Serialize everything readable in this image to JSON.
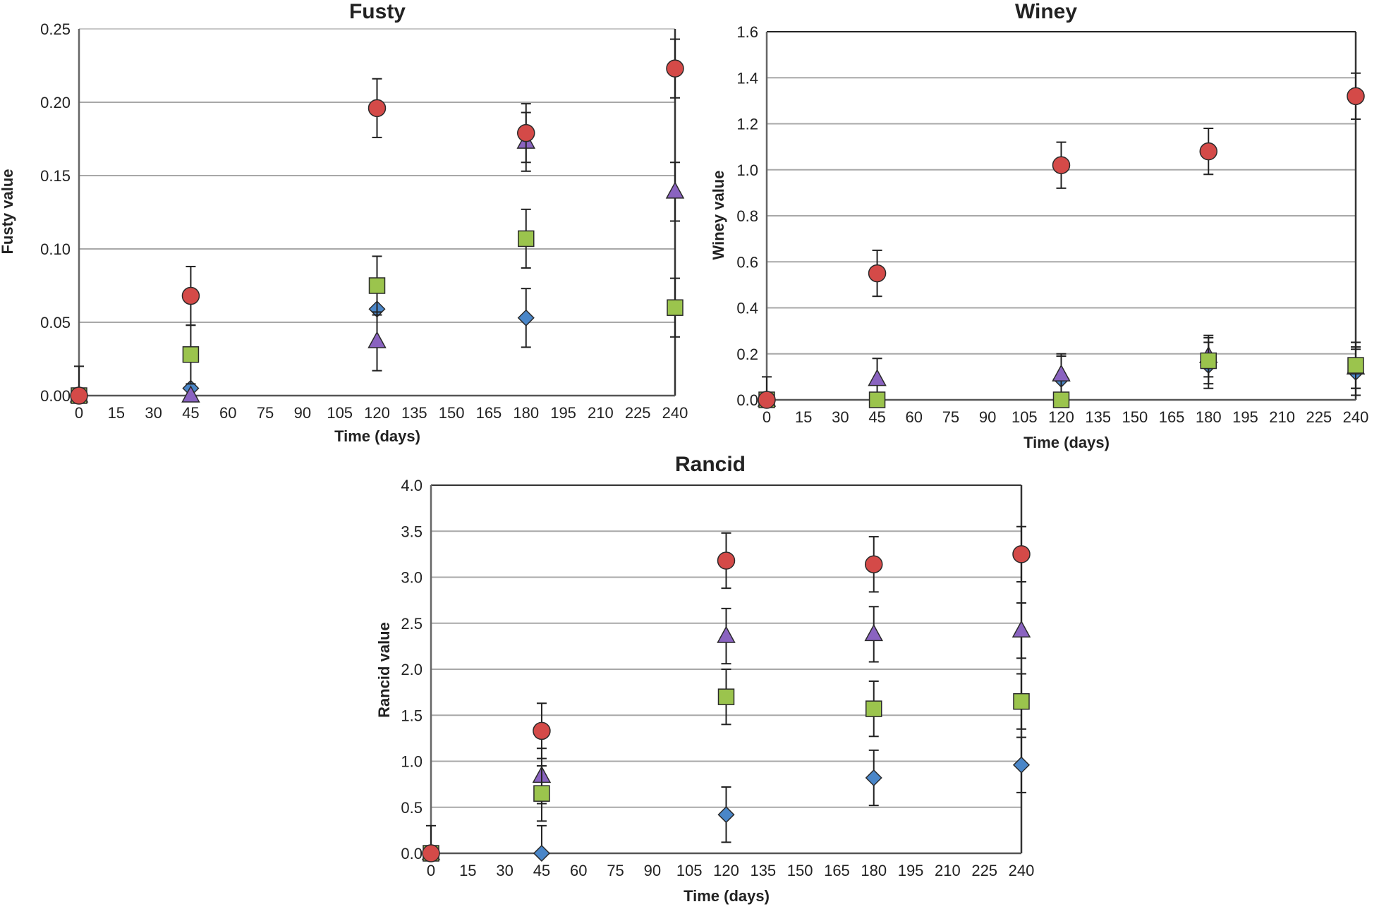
{
  "chart_data": [
    {
      "id": "fusty",
      "type": "scatter",
      "title": "Fusty",
      "xlabel": "Time (days)",
      "ylabel": "Fusty value",
      "x_ticks": [
        0,
        15,
        30,
        45,
        60,
        75,
        90,
        105,
        120,
        135,
        150,
        165,
        180,
        195,
        210,
        225,
        240
      ],
      "y_ticks": [
        "0.00",
        "0.05",
        "0.10",
        "0.15",
        "0.20",
        "0.25"
      ],
      "xlim": [
        0,
        240
      ],
      "ylim": [
        0,
        0.25
      ],
      "grid": "horizontal",
      "series": [
        {
          "name": "diamond-series",
          "marker": "diamond",
          "color": "#4A86C8",
          "points": [
            {
              "x": 0,
              "y": 0.0,
              "err": 0.0
            },
            {
              "x": 45,
              "y": 0.005,
              "err": 0.0
            },
            {
              "x": 120,
              "y": 0.059,
              "err": 0.0
            },
            {
              "x": 180,
              "y": 0.053,
              "err": 0.02
            }
          ]
        },
        {
          "name": "triangle-series",
          "marker": "triangle",
          "color": "#8A63C0",
          "points": [
            {
              "x": 0,
              "y": 0.0,
              "err": 0.0
            },
            {
              "x": 45,
              "y": 0.0,
              "err": 0.0
            },
            {
              "x": 120,
              "y": 0.037,
              "err": 0.02
            },
            {
              "x": 180,
              "y": 0.173,
              "err": 0.02
            },
            {
              "x": 240,
              "y": 0.139,
              "err": 0.02
            }
          ]
        },
        {
          "name": "square-series",
          "marker": "square",
          "color": "#9BC44D",
          "points": [
            {
              "x": 0,
              "y": 0.0,
              "err": 0.0
            },
            {
              "x": 45,
              "y": 0.028,
              "err": 0.02
            },
            {
              "x": 120,
              "y": 0.075,
              "err": 0.02
            },
            {
              "x": 180,
              "y": 0.107,
              "err": 0.02
            },
            {
              "x": 240,
              "y": 0.06,
              "err": 0.02
            }
          ]
        },
        {
          "name": "circle-series",
          "marker": "circle",
          "color": "#D44A48",
          "points": [
            {
              "x": 0,
              "y": 0.0,
              "err": 0.02
            },
            {
              "x": 45,
              "y": 0.068,
              "err": 0.02
            },
            {
              "x": 120,
              "y": 0.196,
              "err": 0.02
            },
            {
              "x": 180,
              "y": 0.179,
              "err": 0.02
            },
            {
              "x": 240,
              "y": 0.223,
              "err": 0.02
            }
          ]
        }
      ]
    },
    {
      "id": "winey",
      "type": "scatter",
      "title": "Winey",
      "xlabel": "Time (days)",
      "ylabel": "Winey value",
      "x_ticks": [
        0,
        15,
        30,
        45,
        60,
        75,
        90,
        105,
        120,
        135,
        150,
        165,
        180,
        195,
        210,
        225,
        240
      ],
      "y_ticks": [
        "0.0",
        "0.2",
        "0.4",
        "0.6",
        "0.8",
        "1.0",
        "1.2",
        "1.4",
        "1.6"
      ],
      "xlim": [
        0,
        240
      ],
      "ylim": [
        0,
        1.6
      ],
      "grid": "horizontal",
      "series": [
        {
          "name": "diamond-series",
          "marker": "diamond",
          "color": "#4A86C8",
          "points": [
            {
              "x": 0,
              "y": 0.0,
              "err": 0.0
            },
            {
              "x": 120,
              "y": 0.09,
              "err": 0.1
            },
            {
              "x": 180,
              "y": 0.15,
              "err": 0.1
            },
            {
              "x": 240,
              "y": 0.12,
              "err": 0.1
            }
          ]
        },
        {
          "name": "triangle-series",
          "marker": "triangle",
          "color": "#8A63C0",
          "points": [
            {
              "x": 0,
              "y": 0.0,
              "err": 0.0
            },
            {
              "x": 45,
              "y": 0.09,
              "err": 0.09
            },
            {
              "x": 120,
              "y": 0.11,
              "err": 0.09
            },
            {
              "x": 180,
              "y": 0.19,
              "err": 0.09
            },
            {
              "x": 240,
              "y": 0.14,
              "err": 0.09
            }
          ]
        },
        {
          "name": "square-series",
          "marker": "square",
          "color": "#9BC44D",
          "points": [
            {
              "x": 0,
              "y": 0.0,
              "err": 0.0
            },
            {
              "x": 45,
              "y": 0.0,
              "err": 0.0
            },
            {
              "x": 120,
              "y": 0.0,
              "err": 0.0
            },
            {
              "x": 180,
              "y": 0.17,
              "err": 0.1
            },
            {
              "x": 240,
              "y": 0.15,
              "err": 0.1
            }
          ]
        },
        {
          "name": "circle-series",
          "marker": "circle",
          "color": "#D44A48",
          "points": [
            {
              "x": 0,
              "y": 0.0,
              "err": 0.1
            },
            {
              "x": 45,
              "y": 0.55,
              "err": 0.1
            },
            {
              "x": 120,
              "y": 1.02,
              "err": 0.1
            },
            {
              "x": 180,
              "y": 1.08,
              "err": 0.1
            },
            {
              "x": 240,
              "y": 1.32,
              "err": 0.1
            }
          ]
        }
      ]
    },
    {
      "id": "rancid",
      "type": "scatter",
      "title": "Rancid",
      "xlabel": "Time (days)",
      "ylabel": "Rancid value",
      "x_ticks": [
        0,
        15,
        30,
        45,
        60,
        75,
        90,
        105,
        120,
        135,
        150,
        165,
        180,
        195,
        210,
        225,
        240
      ],
      "y_ticks": [
        "0.0",
        "0.5",
        "1.0",
        "1.5",
        "2.0",
        "2.5",
        "3.0",
        "3.5",
        "4.0"
      ],
      "xlim": [
        0,
        240
      ],
      "ylim": [
        0,
        4.0
      ],
      "grid": "horizontal",
      "series": [
        {
          "name": "diamond-series",
          "marker": "diamond",
          "color": "#4A86C8",
          "points": [
            {
              "x": 0,
              "y": 0.0,
              "err": 0.0
            },
            {
              "x": 45,
              "y": 0.0,
              "err": 0.3
            },
            {
              "x": 120,
              "y": 0.42,
              "err": 0.3
            },
            {
              "x": 180,
              "y": 0.82,
              "err": 0.3
            },
            {
              "x": 240,
              "y": 0.96,
              "err": 0.3
            }
          ]
        },
        {
          "name": "triangle-series",
          "marker": "triangle",
          "color": "#8A63C0",
          "points": [
            {
              "x": 0,
              "y": 0.0,
              "err": 0.0
            },
            {
              "x": 45,
              "y": 0.84,
              "err": 0.3
            },
            {
              "x": 120,
              "y": 2.36,
              "err": 0.3
            },
            {
              "x": 180,
              "y": 2.38,
              "err": 0.3
            },
            {
              "x": 240,
              "y": 2.42,
              "err": 0.3
            }
          ]
        },
        {
          "name": "square-series",
          "marker": "square",
          "color": "#9BC44D",
          "points": [
            {
              "x": 0,
              "y": 0.0,
              "err": 0.0
            },
            {
              "x": 45,
              "y": 0.65,
              "err": 0.3
            },
            {
              "x": 120,
              "y": 1.7,
              "err": 0.3
            },
            {
              "x": 180,
              "y": 1.57,
              "err": 0.3
            },
            {
              "x": 240,
              "y": 1.65,
              "err": 0.3
            }
          ]
        },
        {
          "name": "circle-series",
          "marker": "circle",
          "color": "#D44A48",
          "points": [
            {
              "x": 0,
              "y": 0.0,
              "err": 0.3
            },
            {
              "x": 45,
              "y": 1.33,
              "err": 0.3
            },
            {
              "x": 120,
              "y": 3.18,
              "err": 0.3
            },
            {
              "x": 180,
              "y": 3.14,
              "err": 0.3
            },
            {
              "x": 240,
              "y": 3.25,
              "err": 0.3
            }
          ]
        }
      ]
    }
  ]
}
